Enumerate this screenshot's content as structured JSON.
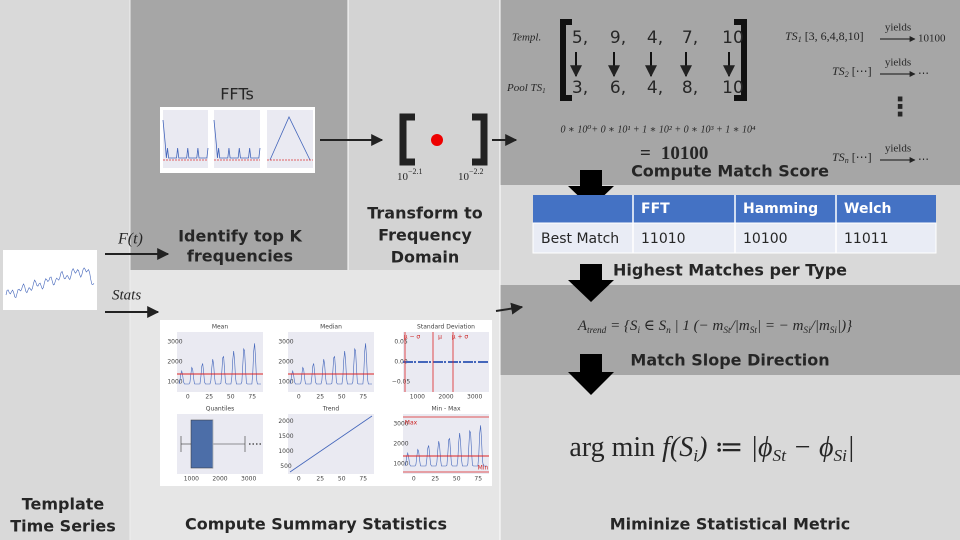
{
  "left": {
    "title": [
      "Template",
      "Time Series"
    ],
    "ft_label": "F(t)",
    "stats_label": "Stats"
  },
  "fft": {
    "title": "FFTs",
    "caption": [
      "Identify top K",
      "frequencies"
    ]
  },
  "transform": {
    "caption": [
      "Transform to",
      "Frequency",
      "Domain"
    ],
    "left_label": {
      "base": "10",
      "exp": "−2.1"
    },
    "right_label": {
      "base": "10",
      "exp": "−2.2"
    }
  },
  "match": {
    "templ_label": "Templ.",
    "templ_values": [
      "5,",
      "9,",
      "4,",
      "7,",
      "10"
    ],
    "pool_label": "Pool TS",
    "pool_sub": "1",
    "pool_values": [
      "3,",
      "6,",
      "4,",
      "8,",
      "10"
    ],
    "sum_formula": "0 ∗ 10⁰+ 0 ∗ 10¹ + 1 ∗ 10² + 0 ∗ 10³ + 1 ∗ 10⁴",
    "result_eq": "=",
    "result": "10100",
    "caption": "Compute Match Score",
    "ts_list": [
      {
        "name": "TS",
        "sub": "1",
        "seq": "[3, 6,4,8,10]",
        "yields": "yields",
        "out": "10100"
      },
      {
        "name": "TS",
        "sub": "2",
        "seq": "[⋯]",
        "yields": "yields",
        "out": "⋯"
      },
      {
        "name": "TS",
        "sub": "n",
        "seq": "[⋯]",
        "yields": "yields",
        "out": "⋯"
      }
    ],
    "vdots": "⋮"
  },
  "table": {
    "header": [
      "FFT",
      "Hamming",
      "Welch"
    ],
    "rows": [
      [
        "Best Match",
        "11010",
        "10100",
        "11011"
      ]
    ],
    "caption": "Highest Matches per Type"
  },
  "slope": {
    "formula": [
      {
        "text": "A",
        "style": "normal"
      },
      {
        "text": "trend",
        "style": "sub"
      },
      {
        "text": " = {S",
        "style": "normal"
      },
      {
        "text": "i",
        "style": "sub"
      },
      {
        "text": " ∈ S",
        "style": "normal"
      },
      {
        "text": "n",
        "style": "sub"
      },
      {
        "text": " | 1 (− m",
        "style": "normal"
      },
      {
        "text": "St",
        "style": "sub"
      },
      {
        "text": "/|m",
        "style": "normal"
      },
      {
        "text": "St",
        "style": "sub"
      },
      {
        "text": "| = − m",
        "style": "normal"
      },
      {
        "text": "Si",
        "style": "sub"
      },
      {
        "text": "/|m",
        "style": "normal"
      },
      {
        "text": "Si",
        "style": "sub"
      },
      {
        "text": "|)}",
        "style": "normal"
      }
    ],
    "caption": "Match Slope Direction"
  },
  "metric": {
    "formula": [
      {
        "text": "arg min ",
        "style": "upright"
      },
      {
        "text": "f",
        "style": "normal"
      },
      {
        "text": "(S",
        "style": "normal"
      },
      {
        "text": "i",
        "style": "sub"
      },
      {
        "text": ") ≔ |ϕ",
        "style": "normal"
      },
      {
        "text": "St",
        "style": "sub"
      },
      {
        "text": " − ϕ",
        "style": "normal"
      },
      {
        "text": "Si",
        "style": "sub"
      },
      {
        "text": "|",
        "style": "normal"
      }
    ],
    "caption": "Miminize Statistical Metric"
  },
  "summary": {
    "caption": "Compute Summary Statistics",
    "panels": [
      {
        "title": "Mean",
        "yticks": [
          "1000",
          "2000",
          "3000"
        ],
        "xticks": [
          "0",
          "25",
          "50",
          "75"
        ]
      },
      {
        "title": "Median",
        "yticks": [
          "1000",
          "2000",
          "3000"
        ],
        "xticks": [
          "0",
          "25",
          "50",
          "75"
        ]
      },
      {
        "title": "Standard Deviation",
        "yticks": [
          "−0.05",
          "0.00",
          "0.05"
        ],
        "xticks": [
          "1000",
          "2000",
          "3000"
        ],
        "notes": [
          "μ − σ",
          "μ",
          "μ + σ"
        ]
      },
      {
        "title": "Quantiles",
        "xticks": [
          "1000",
          "2000",
          "3000"
        ]
      },
      {
        "title": "Trend",
        "yticks": [
          "500",
          "1000",
          "1500",
          "2000"
        ],
        "xticks": [
          "0",
          "25",
          "50",
          "75"
        ]
      },
      {
        "title": "Min - Max",
        "yticks": [
          "1000",
          "2000",
          "3000"
        ],
        "xticks": [
          "0",
          "25",
          "50",
          "75"
        ],
        "notes": [
          "Max",
          "Min"
        ]
      }
    ]
  }
}
